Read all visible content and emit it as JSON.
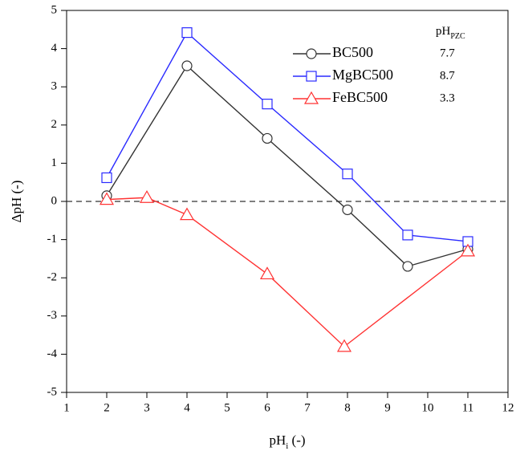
{
  "chart_data": {
    "type": "line",
    "x_label": {
      "base": "pH",
      "sub": "i",
      "suffix": " (-)"
    },
    "y_label": "ΔpH (-)",
    "pzc_header": {
      "base": "pH",
      "sub": "PZC"
    },
    "xlim": [
      1,
      12
    ],
    "xticks": [
      1,
      2,
      3,
      4,
      5,
      6,
      7,
      8,
      9,
      10,
      11,
      12
    ],
    "ylim": [
      -5,
      5
    ],
    "yticks": [
      -5,
      -4,
      -3,
      -2,
      -1,
      0,
      1,
      2,
      3,
      4,
      5
    ],
    "reference_line": 0,
    "series": [
      {
        "name": "BC500",
        "color": "#333333",
        "marker": "circle",
        "pzc": 7.7,
        "x": [
          2,
          4,
          6,
          8,
          9.5,
          11
        ],
        "values": [
          0.15,
          3.55,
          1.65,
          -0.22,
          -1.7,
          -1.25
        ]
      },
      {
        "name": "MgBC500",
        "color": "#2b2bff",
        "marker": "square",
        "pzc": 8.7,
        "x": [
          2,
          4,
          6,
          8,
          9.5,
          11
        ],
        "values": [
          0.62,
          4.42,
          2.55,
          0.72,
          -0.88,
          -1.05
        ]
      },
      {
        "name": "FeBC500",
        "color": "#ff3333",
        "marker": "triangle",
        "pzc": 3.3,
        "x": [
          2,
          3,
          4,
          6,
          7.92,
          11
        ],
        "values": [
          0.05,
          0.1,
          -0.35,
          -1.9,
          -3.8,
          -1.3
        ]
      }
    ]
  }
}
